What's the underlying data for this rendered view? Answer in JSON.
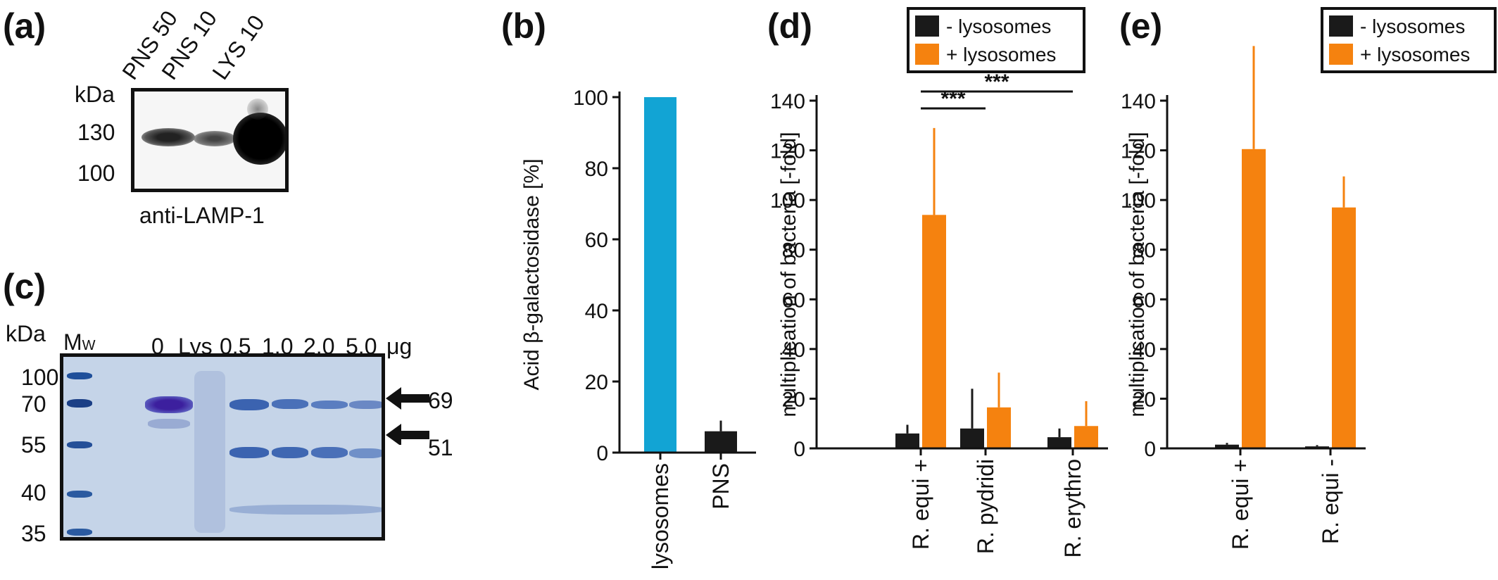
{
  "panel_a": {
    "label": "(a)",
    "lanes": [
      "PNS 50",
      "PNS 10",
      "LYS 10"
    ],
    "kda_label": "kDa",
    "markers": [
      "130",
      "100"
    ],
    "antibody": "anti-LAMP-1"
  },
  "panel_c": {
    "label": "(c)",
    "kda_label": "kDa",
    "mw_label": "M",
    "mw_sub": "W",
    "lanes": [
      "0",
      "Lys",
      "0.5",
      "1.0",
      "2.0",
      "5.0"
    ],
    "unit": "μg",
    "markers": [
      "100",
      "70",
      "55",
      "40",
      "35"
    ],
    "arrows": [
      "69",
      "51"
    ]
  },
  "panels": {
    "b": "(b)",
    "d": "(d)",
    "e": "(e)"
  },
  "chart_data": [
    {
      "panel": "(b)",
      "type": "bar",
      "ylabel": "Acid β-galactosidase [%]",
      "categories": [
        "lysosomes",
        "PNS"
      ],
      "values": [
        100,
        6
      ],
      "errors": [
        0,
        3
      ],
      "colors": [
        "#12a4d4",
        "#1a1a1a"
      ],
      "ylim": [
        0,
        100
      ],
      "yticks": [
        0,
        20,
        40,
        60,
        80,
        100
      ]
    },
    {
      "panel": "(d)",
      "type": "bar",
      "ylabel": "multiplication of bacteria [-fold]",
      "categories": [
        "R. equi +",
        "R. pydridi",
        "R. erythro"
      ],
      "series": [
        {
          "name": "- lysosomes",
          "values": [
            6,
            8,
            4.5
          ],
          "errors": [
            3.5,
            16,
            3.5
          ],
          "color": "#1a1a1a"
        },
        {
          "name": "+ lysosomes",
          "values": [
            94,
            16.5,
            9
          ],
          "errors": [
            35,
            14,
            10
          ],
          "color": "#f5820f"
        }
      ],
      "ylim": [
        0,
        140
      ],
      "yticks": [
        0,
        20,
        40,
        60,
        80,
        100,
        120,
        140
      ],
      "legend": "top",
      "significance": [
        {
          "label": "***",
          "from": "R. equi +",
          "to": "R. pydridi"
        },
        {
          "label": "***",
          "from": "R. equi +",
          "to": "R. erythro"
        }
      ]
    },
    {
      "panel": "(e)",
      "type": "bar",
      "ylabel": "multiplication of bacteria [-fold]",
      "categories": [
        "R. equi +",
        "R. equi -"
      ],
      "series": [
        {
          "name": "- lysosomes",
          "values": [
            1.5,
            0.8
          ],
          "errors": [
            0.7,
            0.5
          ],
          "color": "#1a1a1a"
        },
        {
          "name": "+ lysosomes",
          "values": [
            120.5,
            97
          ],
          "errors": [
            41.5,
            12.5
          ],
          "color": "#f5820f"
        }
      ],
      "ylim": [
        0,
        140
      ],
      "yticks": [
        0,
        20,
        40,
        60,
        80,
        100,
        120,
        140
      ],
      "legend": "top-right"
    }
  ]
}
